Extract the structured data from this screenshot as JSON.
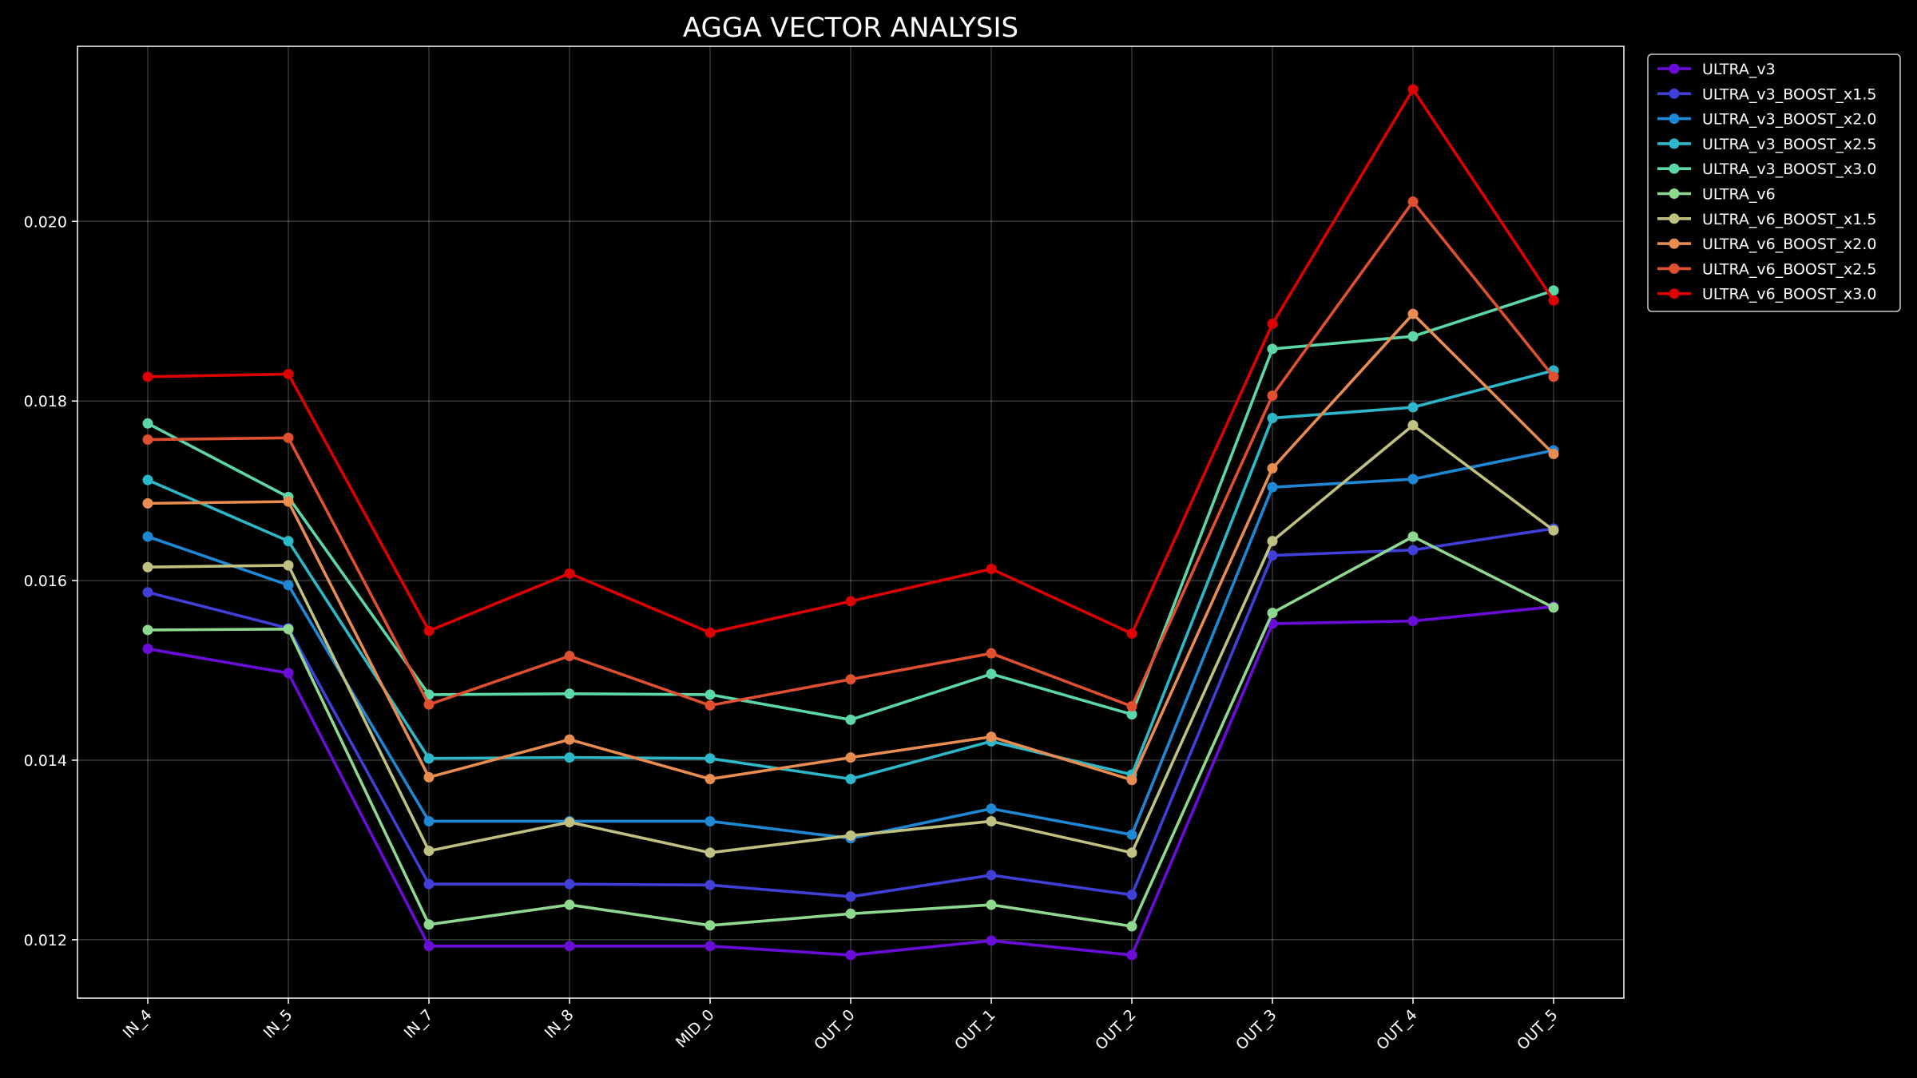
{
  "chart_data": {
    "type": "line",
    "title": "AGGA VECTOR ANALYSIS",
    "xlabel": "",
    "ylabel": "",
    "categories": [
      "IN_4",
      "IN_5",
      "IN_7",
      "IN_8",
      "MID_0",
      "OUT_0",
      "OUT_1",
      "OUT_2",
      "OUT_3",
      "OUT_4",
      "OUT_5"
    ],
    "ylim": [
      0.01135,
      0.02195
    ],
    "yticks": [
      0.012,
      0.014,
      0.016,
      0.018,
      0.02
    ],
    "ytick_labels": [
      "0.012",
      "0.014",
      "0.016",
      "0.018",
      "0.020"
    ],
    "grid": true,
    "legend_position": "upper-right-outside",
    "series": [
      {
        "name": "ULTRA_v3",
        "color": "#6a0dd8",
        "values": [
          0.01524,
          0.01497,
          0.01193,
          0.01193,
          0.01193,
          0.01183,
          0.01199,
          0.01183,
          0.01552,
          0.01555,
          0.01571
        ]
      },
      {
        "name": "ULTRA_v3_BOOST_x1.5",
        "color": "#4040d8",
        "values": [
          0.01587,
          0.01547,
          0.01262,
          0.01262,
          0.01261,
          0.01248,
          0.01272,
          0.0125,
          0.01628,
          0.01634,
          0.01658
        ]
      },
      {
        "name": "ULTRA_v3_BOOST_x2.0",
        "color": "#1e88d4",
        "values": [
          0.01649,
          0.01595,
          0.01332,
          0.01332,
          0.01332,
          0.01313,
          0.01346,
          0.01317,
          0.01704,
          0.01713,
          0.01745
        ]
      },
      {
        "name": "ULTRA_v3_BOOST_x2.5",
        "color": "#2cb8c8",
        "values": [
          0.01712,
          0.01644,
          0.01402,
          0.01403,
          0.01402,
          0.01379,
          0.01421,
          0.01384,
          0.01781,
          0.01793,
          0.01834
        ]
      },
      {
        "name": "ULTRA_v3_BOOST_x3.0",
        "color": "#5cd8a8",
        "values": [
          0.01775,
          0.01693,
          0.01473,
          0.01474,
          0.01473,
          0.01445,
          0.01496,
          0.01451,
          0.01858,
          0.01872,
          0.01923
        ]
      },
      {
        "name": "ULTRA_v6",
        "color": "#8ed890",
        "values": [
          0.01545,
          0.01546,
          0.01217,
          0.01239,
          0.01216,
          0.01229,
          0.01239,
          0.01215,
          0.01564,
          0.01649,
          0.0157
        ]
      },
      {
        "name": "ULTRA_v6_BOOST_x1.5",
        "color": "#c0c080",
        "values": [
          0.01615,
          0.01617,
          0.01299,
          0.01331,
          0.01297,
          0.01316,
          0.01332,
          0.01297,
          0.01644,
          0.01773,
          0.01656
        ]
      },
      {
        "name": "ULTRA_v6_BOOST_x2.0",
        "color": "#e88c50",
        "values": [
          0.01686,
          0.01688,
          0.01381,
          0.01423,
          0.01379,
          0.01403,
          0.01426,
          0.01378,
          0.01725,
          0.01897,
          0.01741
        ]
      },
      {
        "name": "ULTRA_v6_BOOST_x2.5",
        "color": "#e05030",
        "values": [
          0.01757,
          0.01759,
          0.01462,
          0.01516,
          0.01461,
          0.0149,
          0.01519,
          0.0146,
          0.01806,
          0.02022,
          0.01827
        ]
      },
      {
        "name": "ULTRA_v6_BOOST_x3.0",
        "color": "#dd0000",
        "values": [
          0.01827,
          0.0183,
          0.01544,
          0.01608,
          0.01542,
          0.01577,
          0.01613,
          0.01541,
          0.01886,
          0.02147,
          0.01912
        ]
      }
    ]
  }
}
